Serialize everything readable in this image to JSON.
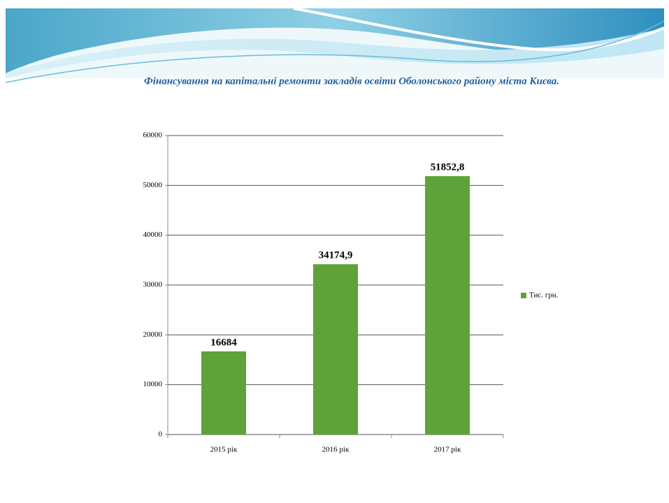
{
  "chart_data": {
    "type": "bar",
    "title": "Фінансування на капітальні ремонти закладів освіти Оболонського району міста Києва.",
    "categories": [
      "2015 рік",
      "2016 рік",
      "2017 рік"
    ],
    "series": [
      {
        "name": "Тис. грн.",
        "color": "#5da33a",
        "values": [
          16684,
          34174.9,
          51852.8
        ],
        "value_labels": [
          "16684",
          "34174,9",
          "51852,8"
        ]
      }
    ],
    "ylim": [
      0,
      60000
    ],
    "yticks": [
      0,
      10000,
      20000,
      30000,
      40000,
      50000,
      60000
    ],
    "grid": true,
    "legend": "right"
  }
}
